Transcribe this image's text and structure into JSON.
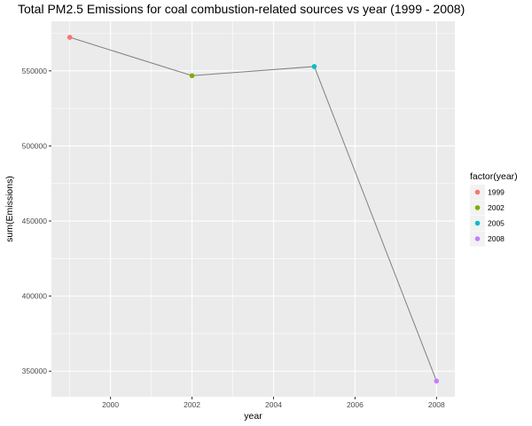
{
  "chart_data": {
    "type": "line",
    "title": "Total PM2.5 Emissions for coal combustion-related sources vs year (1999 - 2008)",
    "xlabel": "year",
    "ylabel": "sum(Emissions)",
    "x": [
      1999,
      2002,
      2005,
      2008
    ],
    "values": [
      572346,
      546789,
      552881,
      343432
    ],
    "point_colors": [
      "#F8766D",
      "#7CAE00",
      "#00BFC4",
      "#C77CFF"
    ],
    "line_color": "#808080",
    "xlim": [
      1998.55,
      2008.45
    ],
    "ylim": [
      333000,
      583000
    ],
    "x_ticks": [
      2000,
      2002,
      2004,
      2006,
      2008
    ],
    "y_ticks": [
      350000,
      400000,
      450000,
      500000,
      550000
    ],
    "grid": true,
    "panel_background": "#EBEBEB",
    "legend": {
      "title": "factor(year)",
      "position": "right",
      "entries": [
        "1999",
        "2002",
        "2005",
        "2008"
      ]
    }
  }
}
